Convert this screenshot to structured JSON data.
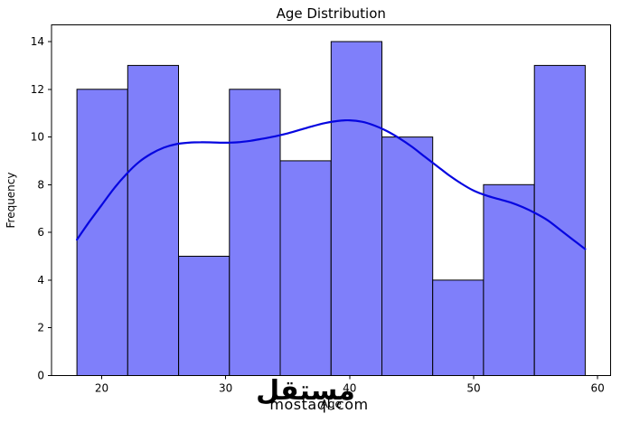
{
  "watermark": {
    "logo_arabic": "مستقل",
    "logo_latin": "mostaql.com"
  },
  "chart_data": {
    "type": "histogram",
    "title": "Age Distribution",
    "xlabel": "Age",
    "ylabel": "Frequency",
    "bin_edges": [
      18.0,
      22.1,
      26.2,
      30.3,
      34.4,
      38.5,
      42.6,
      46.7,
      50.8,
      54.9,
      59.0
    ],
    "counts": [
      12,
      13,
      5,
      12,
      9,
      14,
      10,
      4,
      8,
      13
    ],
    "kde_overlay": {
      "x": [
        18,
        19,
        20,
        21,
        22,
        23,
        24,
        25,
        26,
        27,
        28,
        29,
        30,
        31,
        32,
        33,
        34,
        35,
        36,
        37,
        38,
        39,
        40,
        41,
        42,
        43,
        44,
        45,
        46,
        47,
        48,
        49,
        50,
        51,
        52,
        53,
        54,
        55,
        56,
        57,
        58,
        59
      ],
      "y": [
        5.7,
        6.45,
        7.15,
        7.85,
        8.45,
        8.95,
        9.3,
        9.55,
        9.7,
        9.76,
        9.78,
        9.77,
        9.76,
        9.78,
        9.84,
        9.93,
        10.03,
        10.15,
        10.3,
        10.45,
        10.58,
        10.67,
        10.7,
        10.64,
        10.48,
        10.25,
        9.95,
        9.6,
        9.2,
        8.8,
        8.4,
        8.05,
        7.75,
        7.55,
        7.4,
        7.25,
        7.05,
        6.8,
        6.5,
        6.1,
        5.7,
        5.3
      ]
    },
    "xticks": [
      20,
      30,
      40,
      50,
      60
    ],
    "yticks": [
      0,
      2,
      4,
      6,
      8,
      10,
      12,
      14
    ],
    "xlim": [
      15.95,
      61.05
    ],
    "ylim": [
      0,
      14.7
    ],
    "grid": false,
    "legend": "none",
    "colors": {
      "bar_fill": "#7f7ffa",
      "bar_edge": "#000000",
      "kde_line": "#0606e0",
      "spine": "#000000",
      "watermark": "#d8d8d8",
      "text": "#000000"
    }
  }
}
